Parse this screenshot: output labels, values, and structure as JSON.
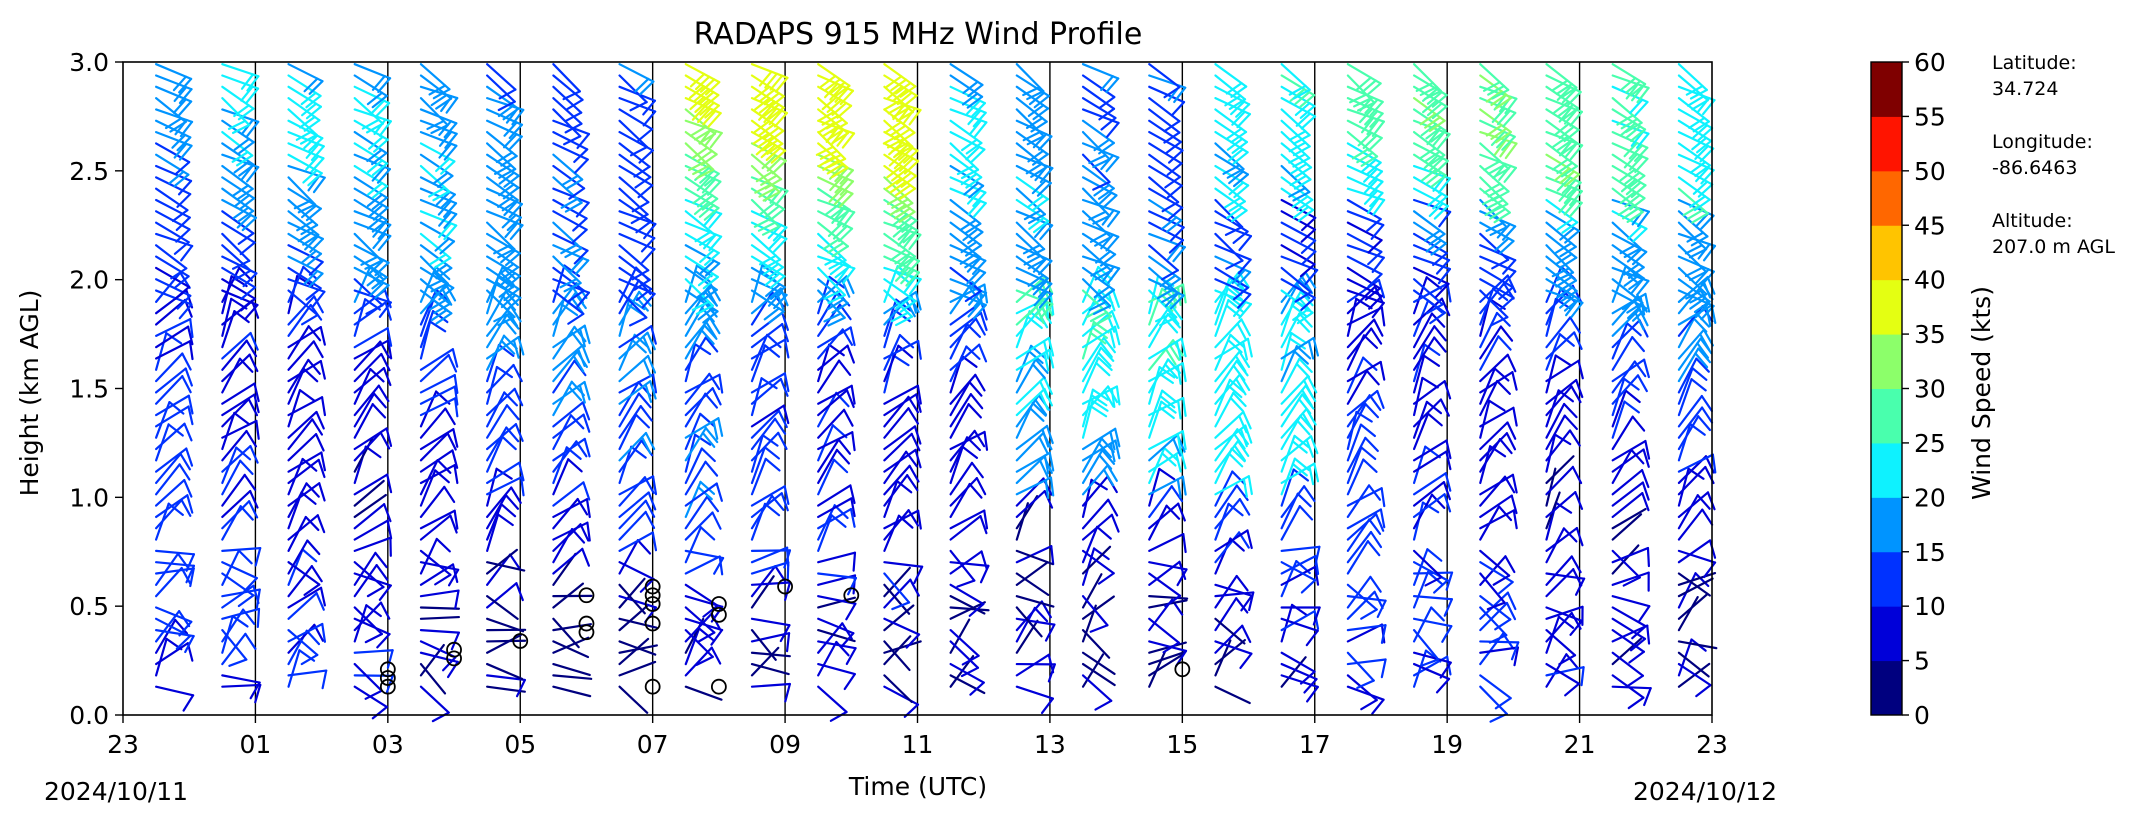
{
  "chart_data": {
    "type": "wind-barb profile",
    "title": "RADAPS 915 MHz Wind Profile",
    "xlabel": "Time (UTC)",
    "ylabel": "Height (km AGL)",
    "start_date": "2024/10/11",
    "end_date": "2024/10/12",
    "x_ticks": [
      "23",
      "01",
      "03",
      "05",
      "07",
      "09",
      "11",
      "13",
      "15",
      "17",
      "19",
      "21",
      "23"
    ],
    "y_ticks": [
      "0.0",
      "0.5",
      "1.0",
      "1.5",
      "2.0",
      "2.5",
      "3.0"
    ],
    "ylim": [
      0,
      3.0
    ],
    "profile_hours": [
      "23.5",
      "00.5",
      "01.5",
      "02.5",
      "03.5",
      "04.5",
      "05.5",
      "06.5",
      "07.5",
      "08.5",
      "09.5",
      "10.5",
      "11.5",
      "12.5",
      "13.5",
      "14.5",
      "15.5",
      "16.5",
      "17.5",
      "18.5",
      "19.5",
      "20.5",
      "21.5",
      "22.5"
    ],
    "calm_markers": [
      {
        "hour": "03",
        "height_km": 0.13
      },
      {
        "hour": "03",
        "height_km": 0.17
      },
      {
        "hour": "03",
        "height_km": 0.21
      },
      {
        "hour": "04",
        "height_km": 0.26
      },
      {
        "hour": "04",
        "height_km": 0.3
      },
      {
        "hour": "05",
        "height_km": 0.34
      },
      {
        "hour": "06",
        "height_km": 0.38
      },
      {
        "hour": "06",
        "height_km": 0.42
      },
      {
        "hour": "06",
        "height_km": 0.55
      },
      {
        "hour": "07",
        "height_km": 0.13
      },
      {
        "hour": "07",
        "height_km": 0.42
      },
      {
        "hour": "07",
        "height_km": 0.51
      },
      {
        "hour": "07",
        "height_km": 0.55
      },
      {
        "hour": "07",
        "height_km": 0.59
      },
      {
        "hour": "08",
        "height_km": 0.13
      },
      {
        "hour": "08",
        "height_km": 0.46
      },
      {
        "hour": "08",
        "height_km": 0.51
      },
      {
        "hour": "09",
        "height_km": 0.59
      },
      {
        "hour": "10",
        "height_km": 0.55
      },
      {
        "hour": "15",
        "height_km": 0.21
      }
    ],
    "colorbar": {
      "label": "Wind Speed (kts)",
      "ticks": [
        "0",
        "5",
        "10",
        "15",
        "20",
        "25",
        "30",
        "35",
        "40",
        "45",
        "50",
        "55",
        "60"
      ],
      "colors": [
        "#00007f",
        "#0000d9",
        "#0032ff",
        "#0094ff",
        "#0ef2ff",
        "#49ffad",
        "#8cff6a",
        "#e4ff12",
        "#ffc400",
        "#ff6700",
        "#ff1400",
        "#7f0000"
      ]
    },
    "station": {
      "latitude_label": "Latitude:",
      "latitude": "34.724",
      "longitude_label": "Longitude:",
      "longitude": "-86.6463",
      "altitude_label": "Altitude:",
      "altitude": "207.0 m AGL"
    }
  }
}
